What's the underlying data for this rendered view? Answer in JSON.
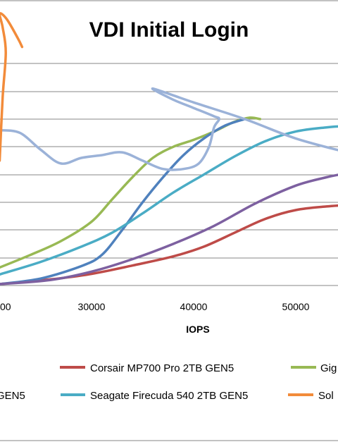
{
  "chart_data": {
    "type": "line",
    "title": "VDI Initial Login",
    "xlabel": "IOPS",
    "ylabel": "",
    "x_ticks": [
      30000,
      40000,
      50000
    ],
    "x_tick_labels": [
      "30000",
      "40000",
      "50000"
    ],
    "x_tick_partial": "00",
    "xlim": [
      21000,
      55000
    ],
    "ylim": [
      0,
      10
    ],
    "y_gridlines": [
      0,
      1,
      2,
      3,
      4,
      5,
      6,
      7,
      8,
      9,
      10
    ],
    "grid": true,
    "legend_position": "bottom",
    "series": [
      {
        "name": "Corsair MP700 Pro 2TB GEN5",
        "color": "#be4b48",
        "x": [
          21000,
          26000,
          30000,
          34000,
          38000,
          41000,
          44000,
          47000,
          50000,
          53000,
          55000
        ],
        "y": [
          0.05,
          0.22,
          0.42,
          0.72,
          1.05,
          1.4,
          1.9,
          2.4,
          2.72,
          2.85,
          2.9
        ]
      },
      {
        "name": "Gig",
        "color": "#98b954",
        "x": [
          21000,
          24000,
          27000,
          30000,
          32000,
          34000,
          36000,
          38000,
          40000,
          42000,
          44000,
          45500,
          46500
        ],
        "y": [
          0.65,
          1.1,
          1.6,
          2.3,
          3.1,
          3.9,
          4.6,
          5.0,
          5.25,
          5.55,
          5.9,
          6.05,
          6.0
        ]
      },
      {
        "name": "GEN5",
        "color": "#4f81bd",
        "x": [
          21000,
          25000,
          29000,
          31000,
          33000,
          35000,
          37000,
          39000,
          41000,
          43000,
          45000
        ],
        "y": [
          0.05,
          0.25,
          0.7,
          1.1,
          2.0,
          3.0,
          3.9,
          4.7,
          5.3,
          5.75,
          6.0
        ]
      },
      {
        "name": "Seagate Firecuda 540 2TB GEN5",
        "color": "#4aacc5",
        "x": [
          21000,
          25000,
          29000,
          32000,
          35000,
          38000,
          41000,
          44000,
          47000,
          50000,
          53000,
          55000
        ],
        "y": [
          0.4,
          0.85,
          1.4,
          1.9,
          2.6,
          3.35,
          4.0,
          4.65,
          5.2,
          5.55,
          5.7,
          5.75
        ]
      },
      {
        "name": "",
        "color": "#7d60a0",
        "x": [
          21000,
          26000,
          30000,
          34000,
          38000,
          42000,
          46000,
          50000,
          53000,
          55000
        ],
        "y": [
          0.05,
          0.2,
          0.5,
          0.95,
          1.5,
          2.15,
          2.95,
          3.6,
          3.9,
          4.05
        ]
      },
      {
        "name": "",
        "color": "#9bb2d8",
        "x": [
          21000,
          23000,
          25000,
          27000,
          29000,
          31000,
          33000,
          35000,
          37000,
          39000,
          40500,
          41500,
          42000,
          42500,
          42000,
          40000,
          38000,
          36000,
          40000,
          45000,
          50000,
          55000
        ],
        "y": [
          5.6,
          5.5,
          4.9,
          4.4,
          4.6,
          4.7,
          4.8,
          4.5,
          4.2,
          4.2,
          4.4,
          5.0,
          5.7,
          6.0,
          6.1,
          6.4,
          6.7,
          7.1,
          6.6,
          6.0,
          5.3,
          4.8
        ]
      },
      {
        "name": "Sol",
        "color": "#f28b3a",
        "x": [
          21000,
          21300,
          21600,
          21300,
          21000,
          21700,
          22800,
          23200
        ],
        "y": [
          4.5,
          6.8,
          8.4,
          9.3,
          9.8,
          9.6,
          8.9,
          8.6
        ]
      }
    ],
    "legend": [
      {
        "label": "Corsair MP700 Pro 2TB GEN5",
        "color": "#be4b48"
      },
      {
        "label": "Gig",
        "color": "#98b954"
      },
      {
        "label": "GEN5",
        "color": "#4f81bd"
      },
      {
        "label": "Seagate Firecuda 540 2TB GEN5",
        "color": "#4aacc5"
      },
      {
        "label": "Sol",
        "color": "#f28b3a"
      }
    ]
  }
}
